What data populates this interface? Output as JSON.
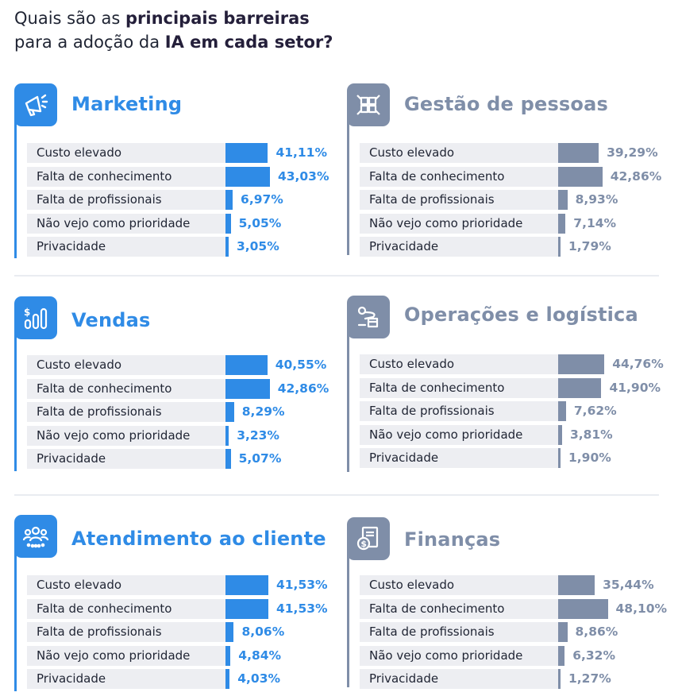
{
  "header": {
    "line1_regular": "Quais são as ",
    "line1_bold": "principais barreiras",
    "line2_regular": "para a adoção da ",
    "line2_bold": "IA em cada setor?"
  },
  "colors": {
    "primary": "#2f8be6",
    "secondary": "#7f8ea8",
    "label_bg": "#edeef2",
    "text": "#1f2433"
  },
  "chart_data": [
    {
      "type": "bar",
      "orientation": "horizontal",
      "title": "Marketing",
      "icon": "megaphone-icon",
      "color": "#2f8be6",
      "categories": [
        "Custo elevado",
        "Falta de conhecimento",
        "Falta de profissionais",
        "Não vejo como prioridade",
        "Privacidade"
      ],
      "values": [
        41.11,
        43.03,
        6.97,
        5.05,
        3.05
      ],
      "value_labels": [
        "41,11%",
        "43,03%",
        "6,97%",
        "5,05%",
        "3,05%"
      ]
    },
    {
      "type": "bar",
      "orientation": "horizontal",
      "title": "Gestão de pessoas",
      "icon": "puzzle-hands-icon",
      "color": "#7f8ea8",
      "categories": [
        "Custo elevado",
        "Falta de conhecimento",
        "Falta de profissionais",
        "Não vejo como prioridade",
        "Privacidade"
      ],
      "values": [
        39.29,
        42.86,
        8.93,
        7.14,
        1.79
      ],
      "value_labels": [
        "39,29%",
        "42,86%",
        "8,93%",
        "7,14%",
        "1,79%"
      ]
    },
    {
      "type": "bar",
      "orientation": "horizontal",
      "title": "Vendas",
      "icon": "sales-chart-icon",
      "color": "#2f8be6",
      "categories": [
        "Custo elevado",
        "Falta de conhecimento",
        "Falta de profissionais",
        "Não vejo como prioridade",
        "Privacidade"
      ],
      "values": [
        40.55,
        42.86,
        8.29,
        3.23,
        5.07
      ],
      "value_labels": [
        "40,55%",
        "42,86%",
        "8,29%",
        "3,23%",
        "5,07%"
      ]
    },
    {
      "type": "bar",
      "orientation": "horizontal",
      "title": "Operações e logística",
      "icon": "route-box-icon",
      "color": "#7f8ea8",
      "categories": [
        "Custo elevado",
        "Falta de conhecimento",
        "Falta de profissionais",
        "Não vejo como prioridade",
        "Privacidade"
      ],
      "values": [
        44.76,
        41.9,
        7.62,
        3.81,
        1.9
      ],
      "value_labels": [
        "44,76%",
        "41,90%",
        "7,62%",
        "3,81%",
        "1,90%"
      ]
    },
    {
      "type": "bar",
      "orientation": "horizontal",
      "title": "Atendimento ao cliente",
      "icon": "customers-icon",
      "color": "#2f8be6",
      "categories": [
        "Custo elevado",
        "Falta de conhecimento",
        "Falta de profissionais",
        "Não vejo como prioridade",
        "Privacidade"
      ],
      "values": [
        41.53,
        41.53,
        8.06,
        4.84,
        4.03
      ],
      "value_labels": [
        "41,53%",
        "41,53%",
        "8,06%",
        "4,84%",
        "4,03%"
      ]
    },
    {
      "type": "bar",
      "orientation": "horizontal",
      "title": "Finanças",
      "icon": "finance-document-icon",
      "color": "#7f8ea8",
      "categories": [
        "Custo elevado",
        "Falta de conhecimento",
        "Falta de profissionais",
        "Não vejo como prioridade",
        "Privacidade"
      ],
      "values": [
        35.44,
        48.1,
        8.86,
        6.32,
        1.27
      ],
      "value_labels": [
        "35,44%",
        "48,10%",
        "8,86%",
        "6,32%",
        "1,27%"
      ]
    }
  ]
}
